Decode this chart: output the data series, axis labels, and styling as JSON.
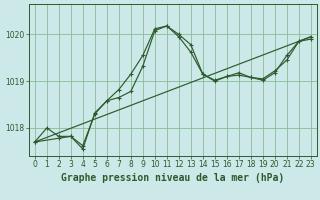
{
  "title": "Graphe pression niveau de la mer (hPa)",
  "background_color": "#cce8e8",
  "grid_color": "#88bb99",
  "line_color": "#2d5a2d",
  "xlim": [
    -0.5,
    23.5
  ],
  "ylim": [
    1017.4,
    1020.65
  ],
  "yticks": [
    1018,
    1019,
    1020
  ],
  "xticks": [
    0,
    1,
    2,
    3,
    4,
    5,
    6,
    7,
    8,
    9,
    10,
    11,
    12,
    13,
    14,
    15,
    16,
    17,
    18,
    19,
    20,
    21,
    22,
    23
  ],
  "series1_x": [
    0,
    1,
    2,
    3,
    4,
    5,
    6,
    7,
    8,
    9,
    10,
    11,
    12,
    13,
    14,
    15,
    16,
    17,
    18,
    19,
    20,
    21,
    22,
    23
  ],
  "series1_y": [
    1017.7,
    1018.0,
    1017.82,
    1017.82,
    1017.62,
    1018.3,
    1018.58,
    1018.82,
    1019.15,
    1019.55,
    1020.12,
    1020.18,
    1020.0,
    1019.78,
    1019.15,
    1019.0,
    1019.1,
    1019.13,
    1019.08,
    1019.05,
    1019.22,
    1019.45,
    1019.85,
    1019.95
  ],
  "series2_x": [
    0,
    2,
    3,
    4,
    5,
    6,
    7,
    8,
    9,
    10,
    11,
    12,
    13,
    14,
    15,
    16,
    17,
    18,
    19,
    20,
    21,
    22,
    23
  ],
  "series2_y": [
    1017.7,
    1017.78,
    1017.82,
    1017.55,
    1018.32,
    1018.58,
    1018.65,
    1018.78,
    1019.32,
    1020.08,
    1020.18,
    1019.95,
    1019.62,
    1019.15,
    1019.02,
    1019.1,
    1019.18,
    1019.08,
    1019.02,
    1019.18,
    1019.55,
    1019.85,
    1019.9
  ],
  "series3_x": [
    0,
    23
  ],
  "series3_y": [
    1017.7,
    1019.95
  ],
  "tick_fontsize": 5.5,
  "label_fontsize": 7
}
